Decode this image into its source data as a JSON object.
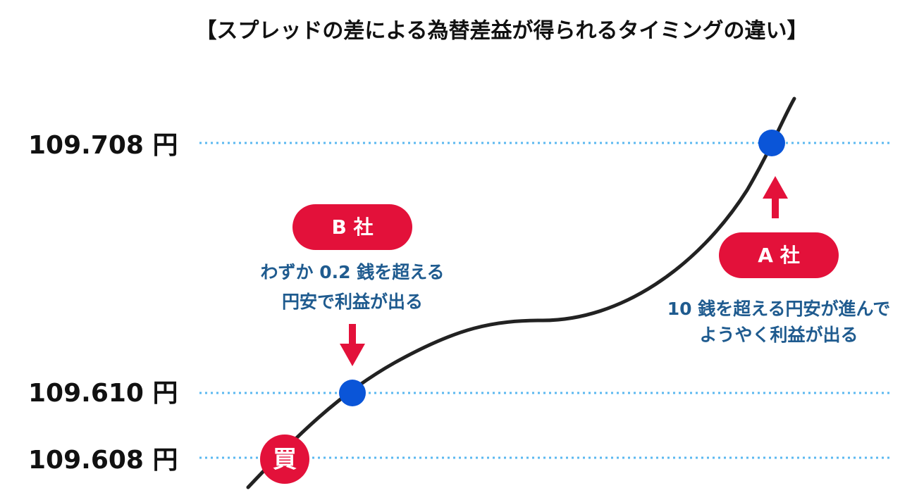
{
  "title": "【スプレッドの差による為替差益が得られるタイミングの違い】",
  "levels": [
    "109.708 円",
    "109.610 円",
    "109.608 円"
  ],
  "company_b": {
    "label": "B 社",
    "note": [
      "わずか 0.2 銭を超える",
      "円安で利益が出る"
    ]
  },
  "company_a": {
    "label": "A 社",
    "note": [
      "10 銭を超える円安が進んで",
      "ようやく利益が出る"
    ]
  },
  "buy_marker": "買"
}
